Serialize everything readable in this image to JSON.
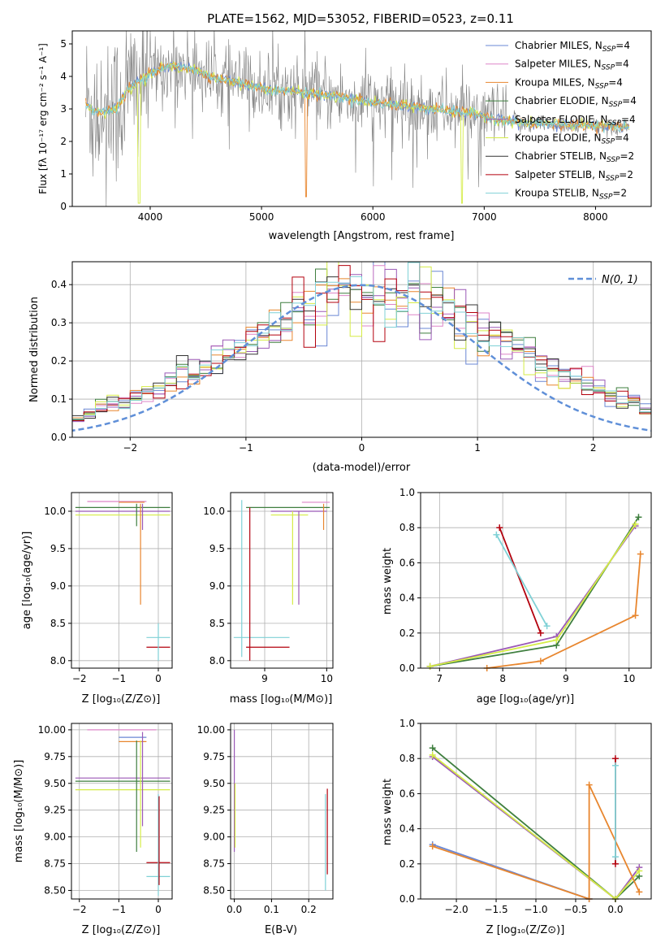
{
  "title": "PLATE=1562, MJD=53052, FIBERID=0523, z=0.11",
  "colors": {
    "Chabrier MILES": "#6a87d4",
    "Salpeter MILES": "#dd85c8",
    "Kroupa MILES": "#e8862e",
    "Chabrier ELODIE": "#3f7f3f",
    "Salpeter ELODIE": "#9b59b6",
    "Kroupa ELODIE": "#d5ec46",
    "Chabrier STELIB": "#333333",
    "Salpeter STELIB": "#b3000d",
    "Kroupa STELIB": "#7fd1d6",
    "data": "#808080",
    "normal": "#5f8fd8"
  },
  "chart_data": [
    {
      "type": "line",
      "id": "spectrum",
      "title": "PLATE=1562, MJD=53052, FIBERID=0523, z=0.11",
      "xlabel": "wavelength [Angstrom, rest frame]",
      "ylabel": "Flux [fλ 10⁻¹⁷ erg cm⁻² s⁻¹ A⁻¹]",
      "xlim": [
        3300,
        8500
      ],
      "ylim": [
        0,
        5.4
      ],
      "xticks": [
        4000,
        5000,
        6000,
        7000,
        8000
      ],
      "yticks": [
        0,
        1,
        2,
        3,
        4,
        5
      ],
      "legend": [
        {
          "text": "Chabrier MILES, N",
          "sub": "SSP",
          "tail": "=4"
        },
        {
          "text": "Salpeter MILES, N",
          "sub": "SSP",
          "tail": "=4"
        },
        {
          "text": "Kroupa MILES, N",
          "sub": "SSP",
          "tail": "=4"
        },
        {
          "text": "Chabrier ELODIE, N",
          "sub": "SSP",
          "tail": "=4"
        },
        {
          "text": "Salpeter ELODIE, N",
          "sub": "SSP",
          "tail": "=4"
        },
        {
          "text": "Kroupa ELODIE, N",
          "sub": "SSP",
          "tail": "=4"
        },
        {
          "text": "Chabrier STELIB, N",
          "sub": "SSP",
          "tail": "=2"
        },
        {
          "text": "Salpeter STELIB, N",
          "sub": "SSP",
          "tail": "=2"
        },
        {
          "text": "Kroupa STELIB, N",
          "sub": "SSP",
          "tail": "=2"
        }
      ],
      "legend_position": "upper right",
      "continuum": [
        [
          3420,
          3.15
        ],
        [
          3500,
          2.95
        ],
        [
          3600,
          2.92
        ],
        [
          3700,
          3.0
        ],
        [
          3800,
          3.6
        ],
        [
          3900,
          3.85
        ],
        [
          4000,
          4.1
        ],
        [
          4100,
          4.25
        ],
        [
          4200,
          4.3
        ],
        [
          4300,
          4.3
        ],
        [
          4400,
          4.2
        ],
        [
          4500,
          4.05
        ],
        [
          4600,
          3.95
        ],
        [
          4800,
          3.8
        ],
        [
          5000,
          3.65
        ],
        [
          5200,
          3.55
        ],
        [
          5400,
          3.5
        ],
        [
          5600,
          3.4
        ],
        [
          5800,
          3.3
        ],
        [
          6000,
          3.2
        ],
        [
          6200,
          3.12
        ],
        [
          6400,
          3.05
        ],
        [
          6600,
          2.98
        ],
        [
          6800,
          2.9
        ],
        [
          7000,
          2.78
        ],
        [
          7200,
          2.62
        ],
        [
          7400,
          2.55
        ],
        [
          7600,
          2.55
        ],
        [
          7800,
          2.5
        ],
        [
          8000,
          2.48
        ],
        [
          8300,
          2.45
        ]
      ]
    },
    {
      "type": "line",
      "id": "residual-histogram",
      "xlabel": "(data-model)/error",
      "ylabel": "Normed distribution",
      "xlim": [
        -2.5,
        2.5
      ],
      "ylim": [
        0,
        0.46
      ],
      "xticks": [
        -2,
        -1,
        0,
        1,
        2
      ],
      "yticks": [
        0.0,
        0.1,
        0.2,
        0.3,
        0.4
      ],
      "legend": "N(0, 1)",
      "legend_position": "upper right",
      "hist_bin_width": 0.1,
      "hist_values": [
        0.02,
        0.025,
        0.03,
        0.03,
        0.04,
        0.05,
        0.06,
        0.08,
        0.09,
        0.09,
        0.1,
        0.11,
        0.12,
        0.14,
        0.16,
        0.17,
        0.19,
        0.2,
        0.21,
        0.23,
        0.25,
        0.27,
        0.29,
        0.31,
        0.33,
        0.34,
        0.36,
        0.38,
        0.39,
        0.38,
        0.37,
        0.39,
        0.38,
        0.37,
        0.38,
        0.35,
        0.36,
        0.33,
        0.31,
        0.3,
        0.28,
        0.27,
        0.25,
        0.22,
        0.21,
        0.19,
        0.18,
        0.16,
        0.15,
        0.14,
        0.12,
        0.11,
        0.1,
        0.09,
        0.07,
        0.06,
        0.05,
        0.04,
        0.03,
        0.025
      ]
    },
    {
      "type": "scatter",
      "id": "age-vs-Z",
      "xlabel": "Z [log₁₀(Z/Z⊙)]",
      "ylabel": "age  [log₁₀(age/yr)]",
      "xlim": [
        -2.2,
        0.35
      ],
      "ylim": [
        7.9,
        10.25
      ],
      "xticks": [
        -2,
        -1,
        0
      ],
      "yticks": [
        8.0,
        8.5,
        9.0,
        9.5,
        10.0
      ],
      "hlines": [
        {
          "y": 10.13,
          "x0": -1.8,
          "x1": -0.3,
          "s": "Salpeter MILES"
        },
        {
          "y": 10.12,
          "x0": -1.0,
          "x1": -0.35,
          "s": "Kroupa MILES"
        },
        {
          "y": 10.05,
          "x0": -2.1,
          "x1": 0.3,
          "s": "Chabrier ELODIE"
        },
        {
          "y": 10.0,
          "x0": -2.1,
          "x1": 0.3,
          "s": "Salpeter ELODIE"
        },
        {
          "y": 9.95,
          "x0": -2.1,
          "x1": 0.3,
          "s": "Kroupa ELODIE"
        },
        {
          "y": 8.31,
          "x0": -0.3,
          "x1": 0.3,
          "s": "Kroupa STELIB"
        },
        {
          "y": 8.18,
          "x0": -0.3,
          "x1": 0.3,
          "s": "Salpeter STELIB"
        }
      ],
      "vlines": [
        {
          "x": -0.55,
          "y0": 9.8,
          "y1": 10.1,
          "s": "Chabrier ELODIE"
        },
        {
          "x": -0.45,
          "y0": 8.75,
          "y1": 10.1,
          "s": "Kroupa MILES"
        },
        {
          "x": -0.4,
          "y0": 9.75,
          "y1": 10.1,
          "s": "Salpeter ELODIE"
        },
        {
          "x": 0.0,
          "y0": 8.0,
          "y1": 8.5,
          "s": "Kroupa STELIB"
        }
      ]
    },
    {
      "type": "scatter",
      "id": "age-vs-mass",
      "xlabel": "mass [log₁₀(M/M⊙)]",
      "xlim": [
        8.45,
        10.1
      ],
      "ylim": [
        7.9,
        10.25
      ],
      "xticks": [
        9,
        10
      ],
      "yticks": [
        8.0,
        8.5,
        9.0,
        9.5,
        10.0
      ],
      "hlines": [
        {
          "y": 10.12,
          "x0": 9.6,
          "x1": 10.05,
          "s": "Salpeter MILES"
        },
        {
          "y": 10.05,
          "x0": 8.7,
          "x1": 10.05,
          "s": "Chabrier ELODIE"
        },
        {
          "y": 10.0,
          "x0": 9.1,
          "x1": 10.0,
          "s": "Salpeter ELODIE"
        },
        {
          "y": 9.95,
          "x0": 9.1,
          "x1": 9.7,
          "s": "Kroupa ELODIE"
        },
        {
          "y": 8.31,
          "x0": 8.5,
          "x1": 9.4,
          "s": "Kroupa STELIB"
        },
        {
          "y": 8.18,
          "x0": 8.7,
          "x1": 9.4,
          "s": "Salpeter STELIB"
        }
      ],
      "vlines": [
        {
          "x": 8.63,
          "y0": 8.05,
          "y1": 10.15,
          "s": "Kroupa STELIB"
        },
        {
          "x": 8.76,
          "y0": 8.0,
          "y1": 10.05,
          "s": "Salpeter STELIB"
        },
        {
          "x": 9.45,
          "y0": 8.75,
          "y1": 10.0,
          "s": "Kroupa ELODIE"
        },
        {
          "x": 9.55,
          "y0": 8.75,
          "y1": 10.0,
          "s": "Salpeter ELODIE"
        },
        {
          "x": 9.95,
          "y0": 9.75,
          "y1": 10.1,
          "s": "Kroupa MILES"
        }
      ]
    },
    {
      "type": "line",
      "id": "mass-weight-vs-age",
      "xlabel": "age  [log₁₀(age/yr)]",
      "ylabel": "mass weight",
      "xlim": [
        6.7,
        10.35
      ],
      "ylim": [
        0.0,
        1.0
      ],
      "xticks": [
        7,
        8,
        9,
        10
      ],
      "yticks": [
        0.0,
        0.2,
        0.4,
        0.6,
        0.8,
        1.0
      ],
      "series": [
        {
          "name": "Chabrier ELODIE",
          "x": [
            6.85,
            8.85,
            10.15
          ],
          "y": [
            0.01,
            0.13,
            0.86
          ]
        },
        {
          "name": "Salpeter ELODIE",
          "x": [
            6.85,
            8.85,
            10.1
          ],
          "y": [
            0.01,
            0.18,
            0.81
          ]
        },
        {
          "name": "Kroupa ELODIE",
          "x": [
            6.85,
            8.85,
            10.1
          ],
          "y": [
            0.01,
            0.16,
            0.82
          ]
        },
        {
          "name": "Kroupa MILES",
          "x": [
            7.75,
            8.6,
            10.1,
            10.18
          ],
          "y": [
            0.0,
            0.04,
            0.3,
            0.65
          ]
        },
        {
          "name": "Salpeter STELIB",
          "x": [
            7.95,
            8.6
          ],
          "y": [
            0.8,
            0.2
          ]
        },
        {
          "name": "Kroupa STELIB",
          "x": [
            7.9,
            8.7
          ],
          "y": [
            0.76,
            0.24
          ]
        }
      ]
    },
    {
      "type": "scatter",
      "id": "mass-vs-Z",
      "xlabel": "Z [log₁₀(Z/Z⊙)]",
      "ylabel": "mass [log₁₀(M/M⊙)]",
      "xlim": [
        -2.2,
        0.35
      ],
      "ylim": [
        8.42,
        10.06
      ],
      "xticks": [
        -2,
        -1,
        0
      ],
      "yticks": [
        8.5,
        8.75,
        9.0,
        9.25,
        9.5,
        9.75,
        10.0
      ],
      "hlines": [
        {
          "y": 10.0,
          "x0": -1.8,
          "x1": -0.05,
          "s": "Salpeter MILES"
        },
        {
          "y": 9.93,
          "x0": -1.0,
          "x1": -0.3,
          "s": "Chabrier MILES"
        },
        {
          "y": 9.89,
          "x0": -1.0,
          "x1": -0.3,
          "s": "Kroupa MILES"
        },
        {
          "y": 9.55,
          "x0": -2.1,
          "x1": 0.3,
          "s": "Salpeter ELODIE"
        },
        {
          "y": 9.52,
          "x0": -2.1,
          "x1": 0.3,
          "s": "Chabrier ELODIE"
        },
        {
          "y": 9.44,
          "x0": -2.1,
          "x1": 0.3,
          "s": "Kroupa ELODIE"
        },
        {
          "y": 8.76,
          "x0": -0.3,
          "x1": 0.3,
          "s": "Salpeter STELIB"
        },
        {
          "y": 8.63,
          "x0": -0.3,
          "x1": 0.3,
          "s": "Kroupa STELIB"
        }
      ],
      "vlines": [
        {
          "x": -0.55,
          "y0": 8.86,
          "y1": 9.9,
          "s": "Chabrier ELODIE"
        },
        {
          "x": -0.45,
          "y0": 8.9,
          "y1": 9.9,
          "s": "Kroupa ELODIE"
        },
        {
          "x": -0.4,
          "y0": 9.1,
          "y1": 9.98,
          "s": "Salpeter ELODIE"
        },
        {
          "x": 0.0,
          "y0": 8.45,
          "y1": 9.4,
          "s": "Kroupa STELIB"
        },
        {
          "x": 0.02,
          "y0": 8.55,
          "y1": 9.38,
          "s": "Salpeter STELIB"
        }
      ]
    },
    {
      "type": "scatter",
      "id": "mass-vs-ebv",
      "xlabel": "E(B-V)",
      "xlim": [
        -0.01,
        0.265
      ],
      "ylim": [
        8.42,
        10.06
      ],
      "xticks": [
        0.0,
        0.1,
        0.2
      ],
      "yticks": [
        8.5,
        8.75,
        9.0,
        9.25,
        9.5,
        9.75,
        10.0
      ],
      "vlines": [
        {
          "x": 0.0,
          "y0": 8.86,
          "y1": 10.0,
          "s": "Salpeter ELODIE"
        },
        {
          "x": 0.002,
          "y0": 8.9,
          "y1": 9.5,
          "s": "Kroupa ELODIE"
        },
        {
          "x": 0.245,
          "y0": 8.5,
          "y1": 9.4,
          "s": "Kroupa STELIB"
        },
        {
          "x": 0.25,
          "y0": 8.65,
          "y1": 9.45,
          "s": "Salpeter STELIB"
        }
      ]
    },
    {
      "type": "line",
      "id": "mass-weight-vs-Z",
      "xlabel": "Z [log₁₀(Z/Z⊙)]",
      "ylabel": "mass weight",
      "xlim": [
        -2.45,
        0.45
      ],
      "ylim": [
        0.0,
        1.0
      ],
      "xticks": [
        -2.0,
        -1.5,
        -1.0,
        -0.5,
        0.0
      ],
      "yticks": [
        0.0,
        0.2,
        0.4,
        0.6,
        0.8,
        1.0
      ],
      "series": [
        {
          "name": "Chabrier ELODIE",
          "x": [
            -2.3,
            0.0,
            0.3
          ],
          "y": [
            0.86,
            0.0,
            0.13
          ]
        },
        {
          "name": "Salpeter ELODIE",
          "x": [
            -2.3,
            0.0,
            0.3
          ],
          "y": [
            0.81,
            0.0,
            0.18
          ]
        },
        {
          "name": "Kroupa ELODIE",
          "x": [
            -2.3,
            0.0,
            0.3
          ],
          "y": [
            0.82,
            0.0,
            0.16
          ]
        },
        {
          "name": "Chabrier MILES",
          "x": [
            -2.3,
            -0.33
          ],
          "y": [
            0.31,
            0.0
          ]
        },
        {
          "name": "Kroupa MILES",
          "x": [
            -2.3,
            -0.33,
            -0.33,
            0.3
          ],
          "y": [
            0.3,
            0.0,
            0.65,
            0.04
          ]
        },
        {
          "name": "Salpeter STELIB",
          "x": [
            0.0,
            0.0
          ],
          "y": [
            0.8,
            0.2
          ]
        },
        {
          "name": "Kroupa STELIB",
          "x": [
            0.0,
            0.0
          ],
          "y": [
            0.76,
            0.24
          ]
        }
      ]
    }
  ]
}
